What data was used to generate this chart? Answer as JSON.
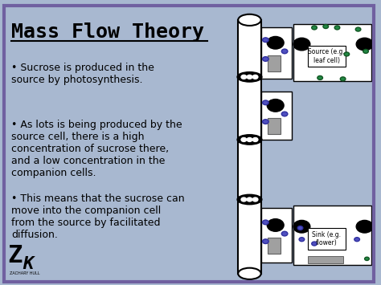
{
  "bg_color": "#a8b8d0",
  "border_color": "#7060a0",
  "title": "Mass Flow Theory",
  "title_fontsize": 18,
  "title_font": "monospace",
  "bullets": [
    "Sucrose is produced in the\nsource by photosynthesis.",
    "As lots is being produced by the\nsource cell, there is a high\nconcentration of sucrose there,\nand a low concentration in the\ncompanion cells.",
    "This means that the sucrose can\nmove into the companion cell\nfrom the source by facilitated\ndiffusion."
  ],
  "bullet_fontsize": 9,
  "source_label": "Source (e.g.\nleaf cell)",
  "sink_label": "Sink (e.g.\nflower)"
}
